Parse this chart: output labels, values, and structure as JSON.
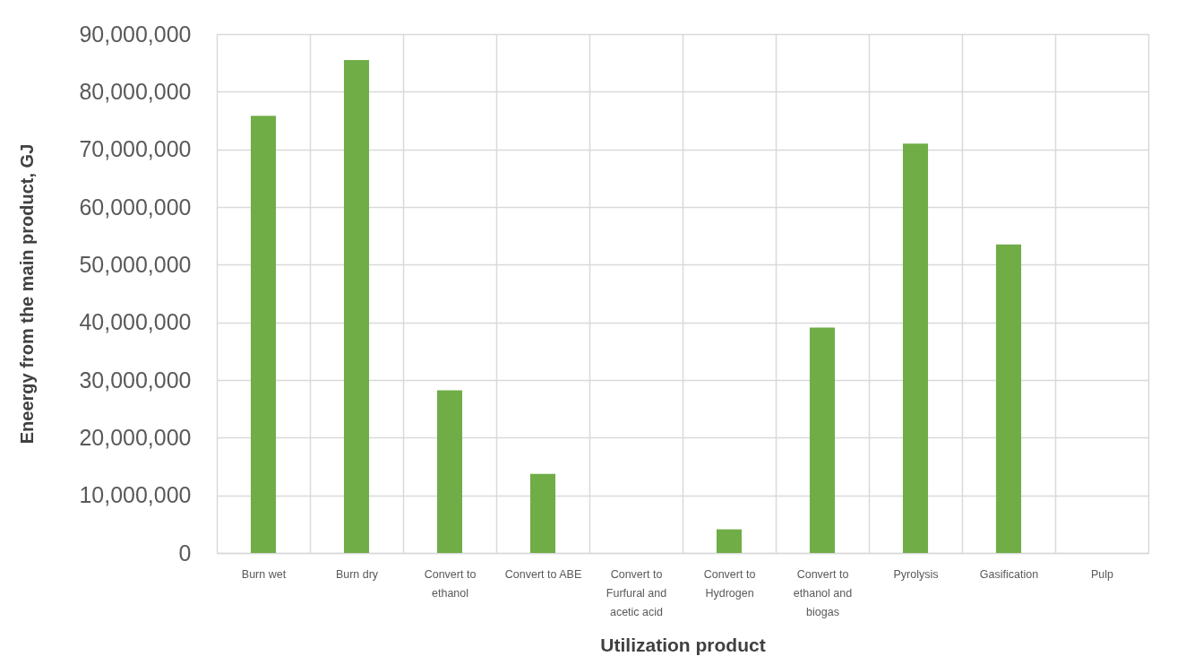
{
  "chart_data": {
    "type": "bar",
    "xlabel": "Utilization product",
    "ylabel": "Eneergy from the main product, GJ",
    "categories": [
      "Burn wet",
      "Burn dry",
      "Convert to ethanol",
      "Convert to ABE",
      "Convert to Furfural and acetic acid",
      "Convert to Hydrogen",
      "Convert to ethanol and biogas",
      "Pyrolysis",
      "Gasification",
      "Pulp"
    ],
    "values": [
      75800000,
      85500000,
      28200000,
      13700000,
      0,
      4100000,
      39100000,
      71000000,
      53500000,
      0
    ],
    "color": "#70ad47",
    "ylim": [
      0,
      90000000
    ],
    "yticks": [
      0,
      {
        "value": 10000000,
        "label": "10,000,000"
      },
      {
        "value": 20000000,
        "label": "20,000,000"
      },
      {
        "value": 30000000,
        "label": "30,000,000"
      },
      {
        "value": 40000000,
        "label": "40,000,000"
      },
      {
        "value": 50000000,
        "label": "50,000,000"
      },
      {
        "value": 60000000,
        "label": "60,000,000"
      },
      {
        "value": 70000000,
        "label": "70,000,000"
      },
      {
        "value": 80000000,
        "label": "80,000,000"
      },
      {
        "value": 90000000,
        "label": "90,000,000"
      }
    ],
    "grid": true
  }
}
